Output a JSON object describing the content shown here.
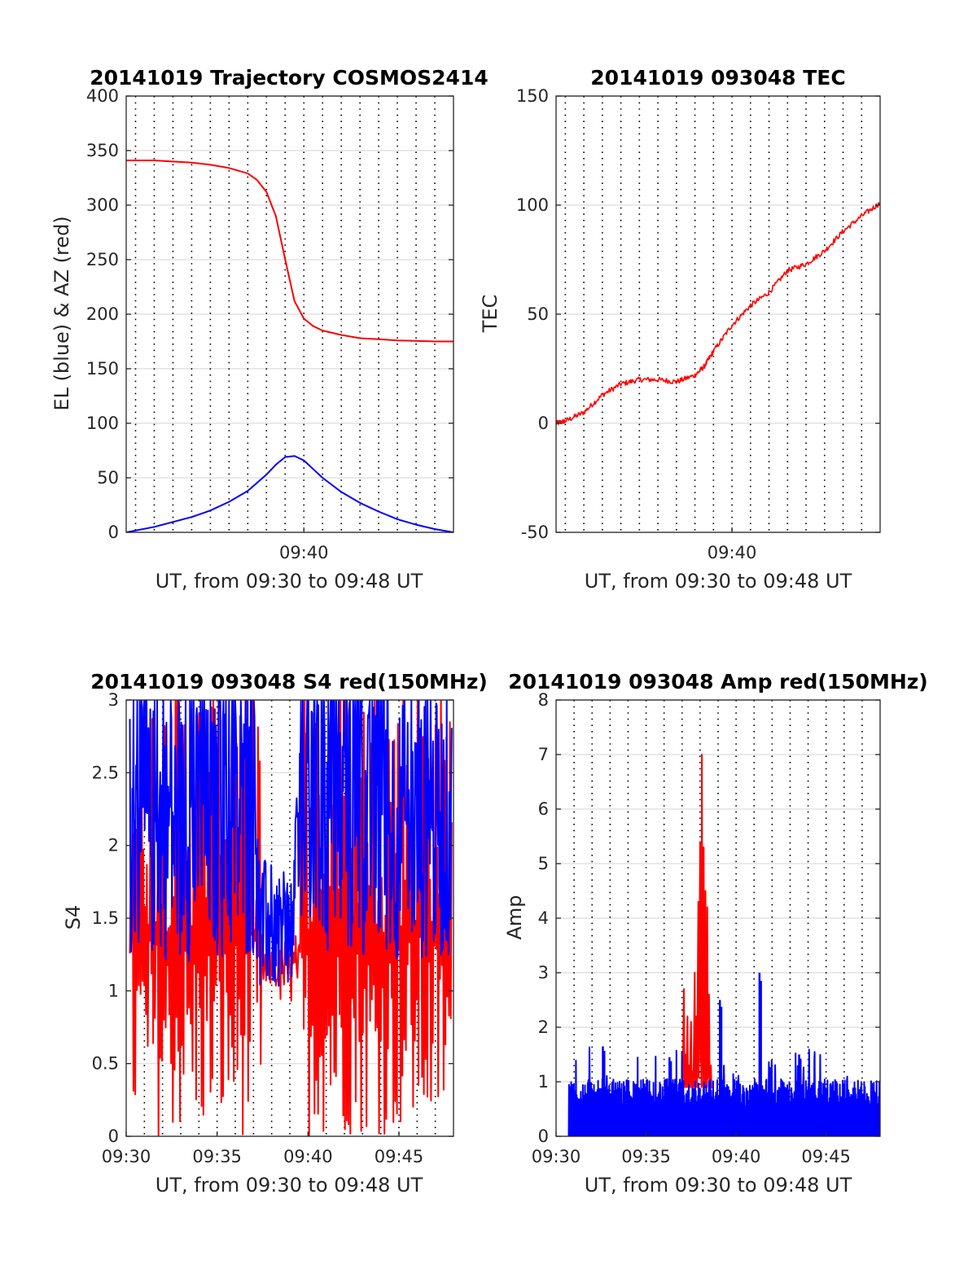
{
  "chart_data": [
    {
      "type": "line",
      "title": "20141019 Trajectory COSMOS2414",
      "xlabel": "UT, from 09:30 to 09:48 UT",
      "ylabel": "EL (blue) & AZ (red)",
      "xlim": [
        0.5,
        18
      ],
      "ylim": [
        0,
        400
      ],
      "yticks": [
        0,
        50,
        100,
        150,
        200,
        250,
        300,
        350,
        400
      ],
      "xticks": [
        {
          "v": 10,
          "label": "09:40"
        }
      ],
      "grid": true,
      "series": [
        {
          "color": "#ff0000",
          "x": [
            0.5,
            2,
            4,
            5,
            6,
            7,
            7.5,
            8,
            8.5,
            9,
            9.5,
            10,
            10.5,
            11,
            12,
            13,
            14,
            15,
            16,
            17,
            18
          ],
          "y": [
            341,
            341,
            339,
            337,
            334,
            329,
            323,
            312,
            290,
            250,
            212,
            196,
            189,
            185,
            181,
            178,
            177,
            176,
            175.5,
            175,
            175
          ]
        },
        {
          "color": "#0000ff",
          "x": [
            0.5,
            2,
            4,
            5,
            6,
            7,
            8,
            8.5,
            9,
            9.5,
            10,
            10.5,
            11,
            12,
            13,
            14,
            15,
            16,
            17,
            18
          ],
          "y": [
            0,
            5,
            14,
            20,
            28,
            38,
            53,
            62,
            69,
            70,
            66,
            58,
            50,
            37,
            27,
            19,
            12,
            7,
            3,
            0
          ]
        }
      ]
    },
    {
      "type": "line",
      "title": "20141019 093048 TEC",
      "xlabel": "UT, from 09:30 to 09:48 UT",
      "ylabel": "TEC",
      "xlim": [
        0.5,
        18
      ],
      "ylim": [
        -50,
        150
      ],
      "yticks": [
        -50,
        0,
        50,
        100,
        150
      ],
      "xticks": [
        {
          "v": 10,
          "label": "09:40"
        }
      ],
      "grid": true,
      "series": [
        {
          "color": "#ff0000",
          "x": [
            0.5,
            1,
            2,
            3,
            4,
            5,
            6,
            7,
            8,
            8.5,
            9,
            10,
            11,
            12,
            13,
            14,
            15,
            16,
            17,
            18
          ],
          "y": [
            0,
            1,
            5,
            13,
            18,
            20,
            20,
            19,
            22,
            26,
            33,
            45,
            54,
            60,
            70,
            73,
            79,
            88,
            95,
            101
          ]
        }
      ],
      "noise": 1.2
    },
    {
      "type": "line",
      "title": "20141019 093048 S4 red(150MHz)",
      "xlabel": "UT, from 09:30 to 09:48 UT",
      "ylabel": "S4",
      "xlim": [
        0,
        18
      ],
      "ylim": [
        0,
        3
      ],
      "yticks": [
        0,
        0.5,
        1,
        1.5,
        2,
        2.5,
        3
      ],
      "xticks": [
        {
          "v": 0,
          "label": "09:30"
        },
        {
          "v": 5,
          "label": "09:35"
        },
        {
          "v": 10,
          "label": "09:40"
        },
        {
          "v": 15,
          "label": "09:45"
        }
      ],
      "grid": true,
      "series": [
        {
          "color": "#ff0000",
          "x_range": [
            0.2,
            17.9
          ],
          "min": 0,
          "max": 3.2,
          "samples": 360
        },
        {
          "color": "#0000ff",
          "x_range": [
            0.2,
            17.9
          ],
          "min": 1.0,
          "max": 3.0,
          "samples": 520
        }
      ]
    },
    {
      "type": "line",
      "title": "20141019 093048 Amp red(150MHz)",
      "xlabel": "UT, from 09:30 to 09:48 UT",
      "ylabel": "Amp",
      "xlim": [
        0,
        18
      ],
      "ylim": [
        0,
        8
      ],
      "yticks": [
        0,
        1,
        2,
        3,
        4,
        5,
        6,
        7,
        8
      ],
      "xticks": [
        {
          "v": 0,
          "label": "09:30"
        },
        {
          "v": 5,
          "label": "09:35"
        },
        {
          "v": 10,
          "label": "09:40"
        },
        {
          "v": 15,
          "label": "09:45"
        }
      ],
      "grid": true,
      "series": [
        {
          "color": "#ff0000",
          "x": [
            7.0,
            7.1,
            7.2,
            7.3,
            7.4,
            7.5,
            7.6,
            7.7,
            7.8,
            7.9,
            8.0,
            8.05,
            8.1,
            8.15,
            8.2,
            8.25,
            8.3,
            8.35,
            8.4,
            8.5,
            8.6,
            8.7
          ],
          "y": [
            1.1,
            2.7,
            1.5,
            2.2,
            1.3,
            2.1,
            1.2,
            3.0,
            2.2,
            4.3,
            5.4,
            1.6,
            7.0,
            2.4,
            5.3,
            1.8,
            4.5,
            1.5,
            4.2,
            2.6,
            1.3,
            0.9
          ]
        },
        {
          "color": "#0000ff",
          "x_range": [
            0.7,
            18
          ],
          "base": 0.55,
          "spread": 0.5,
          "samples": 900,
          "spikes": [
            {
              "x": 11.3,
              "y": 3.0
            },
            {
              "x": 9.1,
              "y": 2.5
            },
            {
              "x": 13.5,
              "y": 1.5
            },
            {
              "x": 2.6,
              "y": 1.65
            },
            {
              "x": 6.3,
              "y": 1.45
            }
          ]
        }
      ]
    }
  ]
}
